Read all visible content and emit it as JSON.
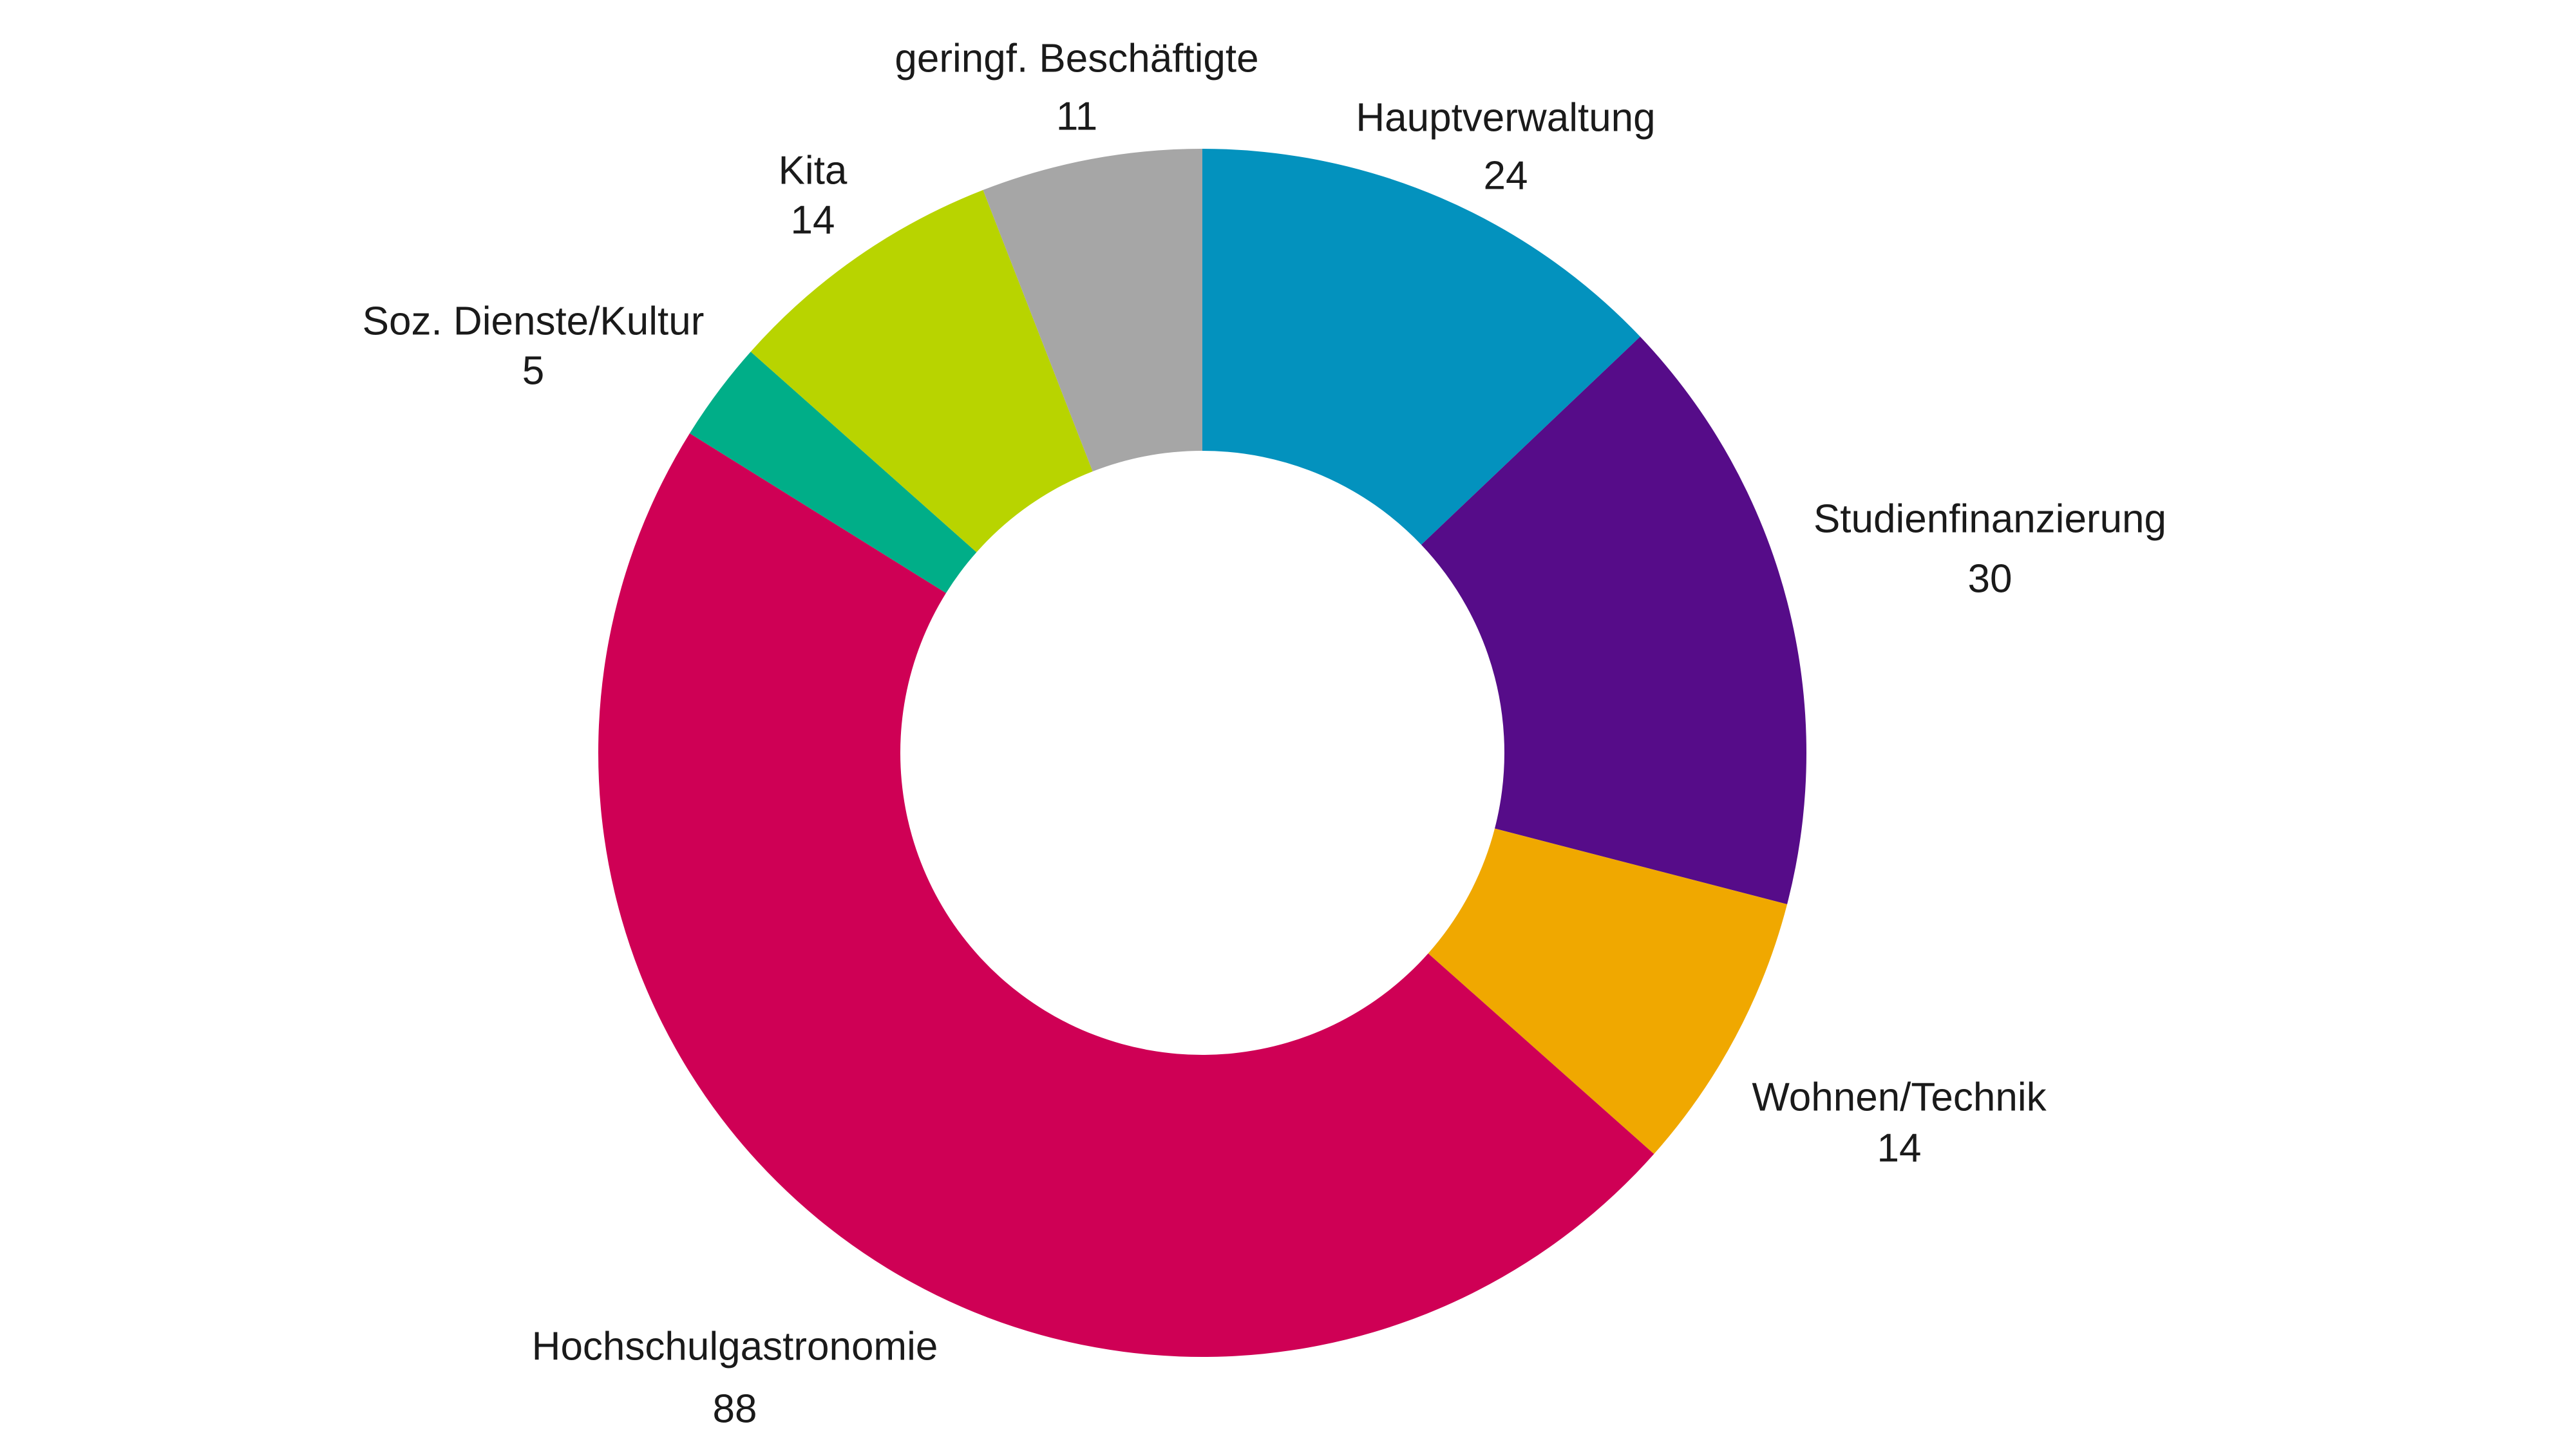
{
  "chart_data": {
    "type": "donut",
    "categories": [
      "Hauptverwaltung",
      "Studienfinanzierung",
      "Wohnen/Technik",
      "Hochschulgastronomie",
      "Soz. Dienste/Kultur",
      "Kita",
      "geringf. Beschäftigte"
    ],
    "values": [
      24,
      30,
      14,
      88,
      5,
      14,
      11
    ],
    "colors": [
      "#0392be",
      "#560c89",
      "#f0a800",
      "#cf0055",
      "#00ae88",
      "#b8d400",
      "#a6a6a6"
    ]
  }
}
